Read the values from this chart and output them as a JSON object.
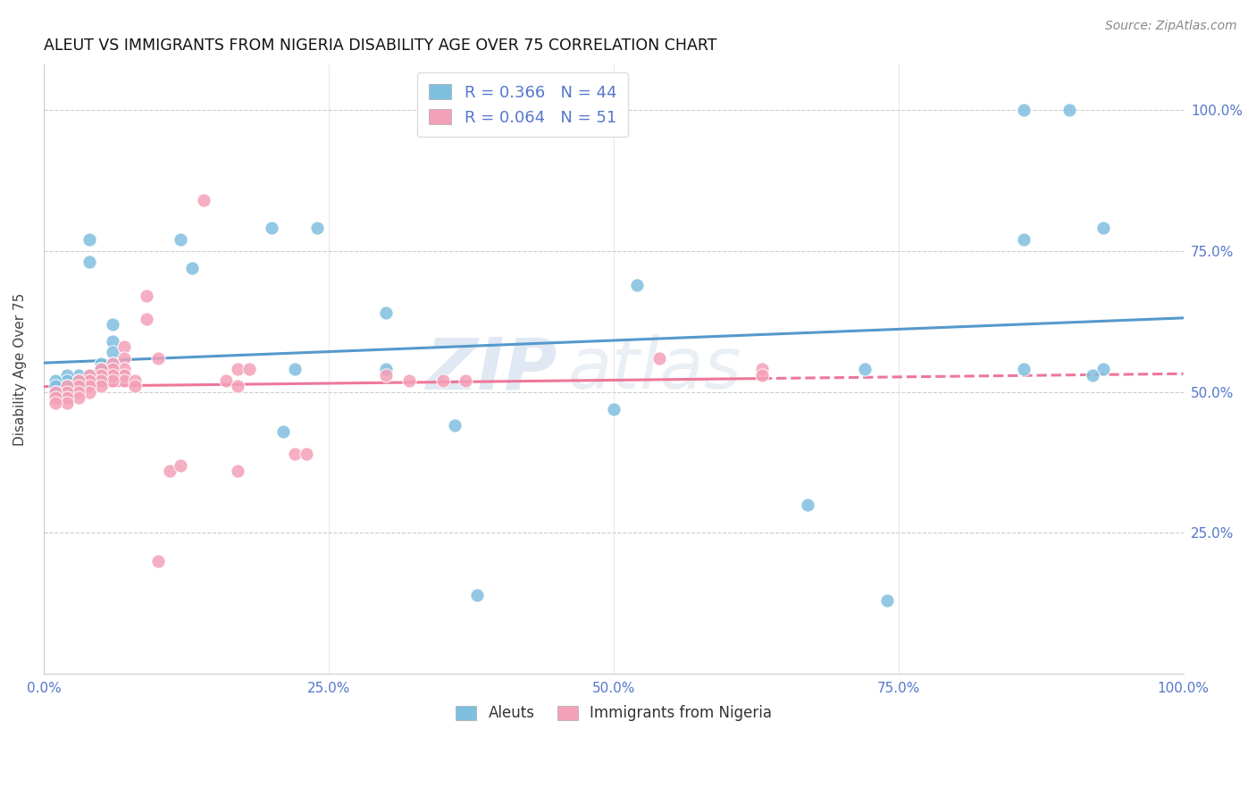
{
  "title": "ALEUT VS IMMIGRANTS FROM NIGERIA DISABILITY AGE OVER 75 CORRELATION CHART",
  "source": "Source: ZipAtlas.com",
  "ylabel": "Disability Age Over 75",
  "legend_blue_label": "Aleuts",
  "legend_pink_label": "Immigrants from Nigeria",
  "R_blue": 0.366,
  "N_blue": 44,
  "R_pink": 0.064,
  "N_pink": 51,
  "watermark_zip": "ZIP",
  "watermark_atlas": "atlas",
  "blue_color": "#7fbfdf",
  "pink_color": "#f4a0b8",
  "line_blue_color": "#5599cc",
  "line_pink_color": "#ee7799",
  "tick_color": "#5577cc",
  "blue_points": [
    [
      0.12,
      0.77
    ],
    [
      0.13,
      0.72
    ],
    [
      0.2,
      0.79
    ],
    [
      0.24,
      0.79
    ],
    [
      0.04,
      0.77
    ],
    [
      0.04,
      0.73
    ],
    [
      0.06,
      0.62
    ],
    [
      0.06,
      0.59
    ],
    [
      0.06,
      0.57
    ],
    [
      0.06,
      0.55
    ],
    [
      0.05,
      0.55
    ],
    [
      0.05,
      0.54
    ],
    [
      0.05,
      0.53
    ],
    [
      0.05,
      0.52
    ],
    [
      0.04,
      0.53
    ],
    [
      0.04,
      0.52
    ],
    [
      0.03,
      0.53
    ],
    [
      0.03,
      0.52
    ],
    [
      0.03,
      0.51
    ],
    [
      0.02,
      0.53
    ],
    [
      0.02,
      0.52
    ],
    [
      0.02,
      0.51
    ],
    [
      0.02,
      0.5
    ],
    [
      0.01,
      0.52
    ],
    [
      0.01,
      0.51
    ],
    [
      0.01,
      0.5
    ],
    [
      0.22,
      0.54
    ],
    [
      0.3,
      0.54
    ],
    [
      0.36,
      0.44
    ],
    [
      0.21,
      0.43
    ],
    [
      0.3,
      0.64
    ],
    [
      0.52,
      0.69
    ],
    [
      0.5,
      0.47
    ],
    [
      0.67,
      0.3
    ],
    [
      0.72,
      0.54
    ],
    [
      0.86,
      0.54
    ],
    [
      0.86,
      0.77
    ],
    [
      0.93,
      0.79
    ],
    [
      0.93,
      0.54
    ],
    [
      0.92,
      0.53
    ],
    [
      0.38,
      0.14
    ],
    [
      0.74,
      0.13
    ],
    [
      0.86,
      1.0
    ],
    [
      0.9,
      1.0
    ]
  ],
  "pink_points": [
    [
      0.14,
      0.84
    ],
    [
      0.09,
      0.67
    ],
    [
      0.09,
      0.63
    ],
    [
      0.1,
      0.56
    ],
    [
      0.07,
      0.58
    ],
    [
      0.07,
      0.56
    ],
    [
      0.07,
      0.54
    ],
    [
      0.07,
      0.53
    ],
    [
      0.07,
      0.52
    ],
    [
      0.06,
      0.55
    ],
    [
      0.06,
      0.54
    ],
    [
      0.06,
      0.53
    ],
    [
      0.06,
      0.52
    ],
    [
      0.05,
      0.54
    ],
    [
      0.05,
      0.53
    ],
    [
      0.05,
      0.52
    ],
    [
      0.05,
      0.51
    ],
    [
      0.04,
      0.53
    ],
    [
      0.04,
      0.52
    ],
    [
      0.04,
      0.51
    ],
    [
      0.04,
      0.5
    ],
    [
      0.03,
      0.52
    ],
    [
      0.03,
      0.51
    ],
    [
      0.03,
      0.5
    ],
    [
      0.03,
      0.49
    ],
    [
      0.02,
      0.51
    ],
    [
      0.02,
      0.5
    ],
    [
      0.02,
      0.49
    ],
    [
      0.02,
      0.48
    ],
    [
      0.01,
      0.5
    ],
    [
      0.01,
      0.49
    ],
    [
      0.01,
      0.48
    ],
    [
      0.08,
      0.52
    ],
    [
      0.08,
      0.51
    ],
    [
      0.16,
      0.52
    ],
    [
      0.17,
      0.51
    ],
    [
      0.17,
      0.36
    ],
    [
      0.22,
      0.39
    ],
    [
      0.23,
      0.39
    ],
    [
      0.32,
      0.52
    ],
    [
      0.35,
      0.52
    ],
    [
      0.37,
      0.52
    ],
    [
      0.1,
      0.2
    ],
    [
      0.11,
      0.36
    ],
    [
      0.12,
      0.37
    ],
    [
      0.17,
      0.54
    ],
    [
      0.18,
      0.54
    ],
    [
      0.3,
      0.53
    ],
    [
      0.54,
      0.56
    ],
    [
      0.63,
      0.54
    ],
    [
      0.63,
      0.53
    ]
  ]
}
